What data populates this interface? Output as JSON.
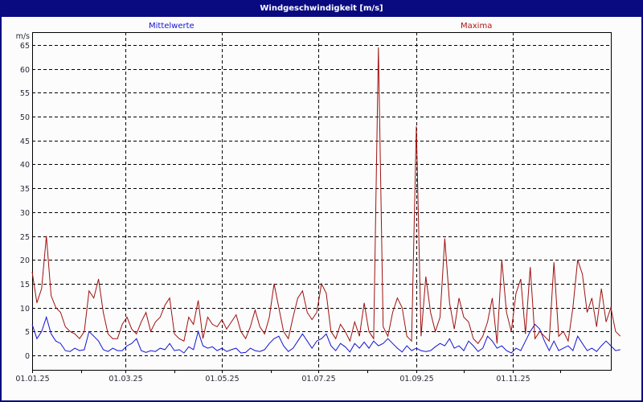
{
  "window": {
    "title": "Windgeschwindigkeit [m/s]"
  },
  "legend": {
    "mean_label": "Mittelwerte",
    "max_label": "Maxima"
  },
  "colors": {
    "titlebar": "#0a0a80",
    "mean": "#1414d2",
    "max": "#a01010",
    "grid": "#000000",
    "labels": "#2a2a3c"
  },
  "chart_data": {
    "type": "line",
    "title": "Windgeschwindigkeit [m/s]",
    "xlabel": "",
    "ylabel": "m/s",
    "ylim": [
      -3,
      68
    ],
    "yticks": [
      0,
      5,
      10,
      15,
      20,
      25,
      30,
      35,
      40,
      45,
      50,
      55,
      60,
      65
    ],
    "xticks": [
      "01.01.25",
      "01.03.25",
      "01.05.25",
      "01.07.25",
      "01.09.25",
      "01.11.25"
    ],
    "xtick_days": [
      0,
      59,
      120,
      181,
      243,
      304
    ],
    "minor_xtick_days": [
      31,
      90,
      151,
      212,
      273,
      334
    ],
    "x_range_days": [
      0,
      366
    ],
    "grid": true,
    "legend_position": "top",
    "x_day_step": 3,
    "series": [
      {
        "name": "Mittelwerte",
        "values": [
          6.5,
          3.5,
          5.0,
          8.0,
          4.5,
          3.0,
          2.5,
          1.0,
          0.8,
          1.5,
          1.0,
          1.2,
          5.0,
          4.0,
          3.0,
          1.2,
          0.8,
          1.5,
          1.0,
          1.0,
          2.0,
          2.5,
          3.5,
          1.0,
          0.6,
          1.0,
          0.8,
          1.5,
          1.2,
          2.5,
          1.0,
          1.2,
          0.5,
          1.8,
          1.2,
          5.0,
          2.0,
          1.5,
          1.8,
          1.0,
          1.5,
          0.8,
          1.2,
          1.5,
          0.5,
          0.6,
          1.5,
          1.0,
          0.8,
          1.2,
          2.5,
          3.5,
          4.0,
          2.0,
          0.8,
          1.5,
          3.0,
          4.5,
          3.0,
          1.5,
          3.0,
          3.5,
          4.5,
          2.0,
          1.0,
          2.5,
          1.8,
          0.7,
          2.5,
          1.5,
          2.8,
          1.5,
          3.0,
          2.0,
          2.5,
          3.5,
          2.5,
          1.5,
          0.7,
          2.0,
          1.0,
          1.5,
          1.0,
          0.8,
          1.0,
          1.8,
          2.5,
          2.0,
          3.5,
          1.5,
          2.0,
          1.0,
          3.0,
          2.0,
          0.8,
          1.5,
          4.0,
          3.0,
          1.5,
          2.0,
          1.0,
          0.5,
          1.5,
          1.0,
          3.0,
          5.0,
          6.5,
          5.5,
          3.0,
          1.0,
          3.0,
          1.0,
          1.5,
          2.0,
          1.0,
          4.0,
          2.5,
          1.0,
          1.5,
          0.8,
          2.0,
          3.0,
          2.0,
          1.0,
          1.2
        ]
      },
      {
        "name": "Maxima",
        "values": [
          17.5,
          11.0,
          14.0,
          25.0,
          12.5,
          10.0,
          9.0,
          6.0,
          5.0,
          4.5,
          3.5,
          5.0,
          13.5,
          12.0,
          16.0,
          9.0,
          4.5,
          3.5,
          3.5,
          6.5,
          8.0,
          5.5,
          4.5,
          7.0,
          9.0,
          5.0,
          7.0,
          8.0,
          10.5,
          12.0,
          4.5,
          3.5,
          3.0,
          8.0,
          6.5,
          11.5,
          3.5,
          8.0,
          6.5,
          6.0,
          7.5,
          5.5,
          7.0,
          8.5,
          5.0,
          3.5,
          6.0,
          9.5,
          6.0,
          4.5,
          8.0,
          15.0,
          10.0,
          5.0,
          3.5,
          8.0,
          12.0,
          13.5,
          9.0,
          7.5,
          9.0,
          15.0,
          13.0,
          5.0,
          3.5,
          6.5,
          5.0,
          3.0,
          7.0,
          4.0,
          11.0,
          5.0,
          3.5,
          64.5,
          6.0,
          4.0,
          9.0,
          12.0,
          10.0,
          4.0,
          3.0,
          48.0,
          4.0,
          16.5,
          9.0,
          5.0,
          8.0,
          24.5,
          11.0,
          5.5,
          12.0,
          8.0,
          7.0,
          3.5,
          2.5,
          4.0,
          7.0,
          12.0,
          2.5,
          20.0,
          9.0,
          5.0,
          13.0,
          16.0,
          4.5,
          18.5,
          3.5,
          5.0,
          4.0,
          3.0,
          19.5,
          4.0,
          5.0,
          3.0,
          10.0,
          20.0,
          17.0,
          9.0,
          12.0,
          6.0,
          14.0,
          7.0,
          10.0,
          5.0,
          4.0
        ]
      }
    ]
  }
}
